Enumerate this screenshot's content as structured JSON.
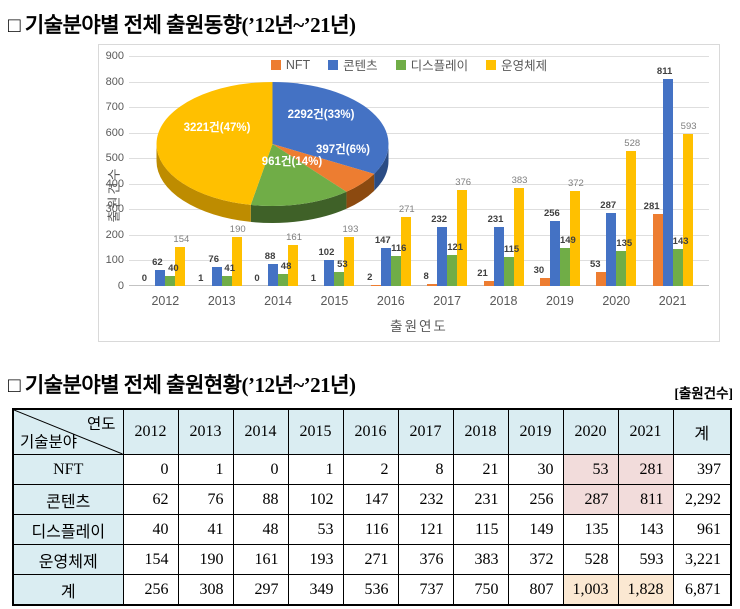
{
  "page": {
    "title_trend": "□ 기술분야별 전체 출원동향(’12년~’21년)",
    "title_status": "□ 기술분야별 전체 출원현황(’12년~’21년)",
    "unit_label": "[출원건수]"
  },
  "chart_data": {
    "type": "bar+pie",
    "xlabel": "출원연도",
    "ylabel": "출원건수",
    "ylim": [
      0,
      900
    ],
    "ytick_step": 100,
    "grid": true,
    "legend_position": "top",
    "categories": [
      "2012",
      "2013",
      "2014",
      "2015",
      "2016",
      "2017",
      "2018",
      "2019",
      "2020",
      "2021"
    ],
    "series": [
      {
        "name": "NFT",
        "color": "#ED7D31",
        "values": [
          0,
          1,
          0,
          1,
          2,
          8,
          21,
          30,
          53,
          281
        ]
      },
      {
        "name": "콘텐츠",
        "color": "#4472C4",
        "values": [
          62,
          76,
          88,
          102,
          147,
          232,
          231,
          256,
          287,
          811
        ]
      },
      {
        "name": "디스플레이",
        "color": "#70AD47",
        "values": [
          40,
          41,
          48,
          53,
          116,
          121,
          115,
          149,
          135,
          143
        ]
      },
      {
        "name": "운영체제",
        "color": "#FFC000",
        "values": [
          154,
          190,
          161,
          193,
          271,
          376,
          383,
          372,
          528,
          593
        ]
      }
    ],
    "pie": {
      "type": "pie3d",
      "slices": [
        {
          "name": "콘텐츠",
          "value": 2292,
          "pct": 33,
          "label": "2292건(33%)",
          "color": "#4472C4",
          "side_color": "#2B4C84"
        },
        {
          "name": "NFT",
          "value": 397,
          "pct": 6,
          "label": "397건(6%)",
          "color": "#ED7D31",
          "side_color": "#8C4A10"
        },
        {
          "name": "디스플레이",
          "value": 961,
          "pct": 14,
          "label": "961건(14%)",
          "color": "#70AD47",
          "side_color": "#3F6128"
        },
        {
          "name": "운영체제",
          "value": 3221,
          "pct": 47,
          "label": "3221건(47%)",
          "color": "#FFC000",
          "side_color": "#BE8C00"
        }
      ]
    }
  },
  "table": {
    "corner_top": "연도",
    "corner_bottom": "기술분야",
    "col_headers": [
      "2012",
      "2013",
      "2014",
      "2015",
      "2016",
      "2017",
      "2018",
      "2019",
      "2020",
      "2021",
      "계"
    ],
    "highlight_colors": {
      "pink": "#F2DCDB",
      "cream": "#FBE8D2"
    },
    "rows": [
      {
        "name": "NFT",
        "values": [
          "0",
          "1",
          "0",
          "1",
          "2",
          "8",
          "21",
          "30",
          "53",
          "281",
          "397"
        ],
        "highlights": {
          "8": "pink",
          "9": "pink"
        }
      },
      {
        "name": "콘텐츠",
        "values": [
          "62",
          "76",
          "88",
          "102",
          "147",
          "232",
          "231",
          "256",
          "287",
          "811",
          "2,292"
        ],
        "highlights": {
          "8": "pink",
          "9": "pink"
        }
      },
      {
        "name": "디스플레이",
        "values": [
          "40",
          "41",
          "48",
          "53",
          "116",
          "121",
          "115",
          "149",
          "135",
          "143",
          "961"
        ]
      },
      {
        "name": "운영체제",
        "values": [
          "154",
          "190",
          "161",
          "193",
          "271",
          "376",
          "383",
          "372",
          "528",
          "593",
          "3,221"
        ]
      },
      {
        "name": "계",
        "values": [
          "256",
          "308",
          "297",
          "349",
          "536",
          "737",
          "750",
          "807",
          "1,003",
          "1,828",
          "6,871"
        ],
        "highlights": {
          "8": "cream",
          "9": "cream"
        }
      }
    ]
  }
}
